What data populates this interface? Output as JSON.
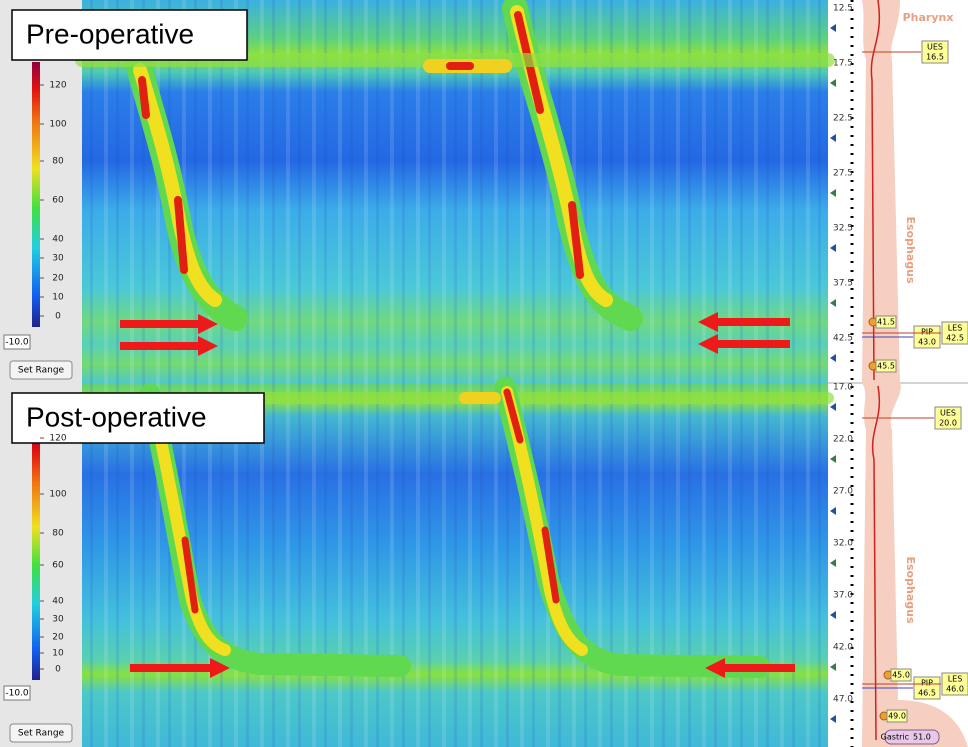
{
  "panels": [
    {
      "title": "Pre-operative",
      "colorbar_ticks": [
        120,
        100,
        80,
        60,
        40,
        30,
        20,
        10,
        0
      ],
      "range_min": "-10.0",
      "button": "Set Range",
      "depths": [
        "12.5",
        "17.5",
        "22.5",
        "27.5",
        "32.5",
        "37.5",
        "42.5"
      ],
      "anatomy": [
        "Pharynx",
        "Esophagus"
      ],
      "markers": [
        {
          "label": "UES",
          "value": "16.5"
        },
        {
          "label": "PIP",
          "value": "43.0"
        },
        {
          "label": "LES",
          "value": "42.5"
        }
      ],
      "points": [
        "41.5",
        "45.5"
      ]
    },
    {
      "title": "Post-operative",
      "colorbar_ticks": [
        120,
        100,
        80,
        60,
        40,
        30,
        20,
        10,
        0
      ],
      "range_min": "-10.0",
      "button": "Set Range",
      "depths": [
        "17.0",
        "22.0",
        "27.0",
        "32.0",
        "37.0",
        "42.0",
        "47.0"
      ],
      "anatomy": [
        "Esophagus"
      ],
      "markers": [
        {
          "label": "UES",
          "value": "20.0"
        },
        {
          "label": "PIP",
          "value": "46.5"
        },
        {
          "label": "LES",
          "value": "46.0"
        },
        {
          "label": "Gastric",
          "value": "51.0"
        }
      ],
      "points": [
        "45.0",
        "49.0"
      ]
    }
  ]
}
